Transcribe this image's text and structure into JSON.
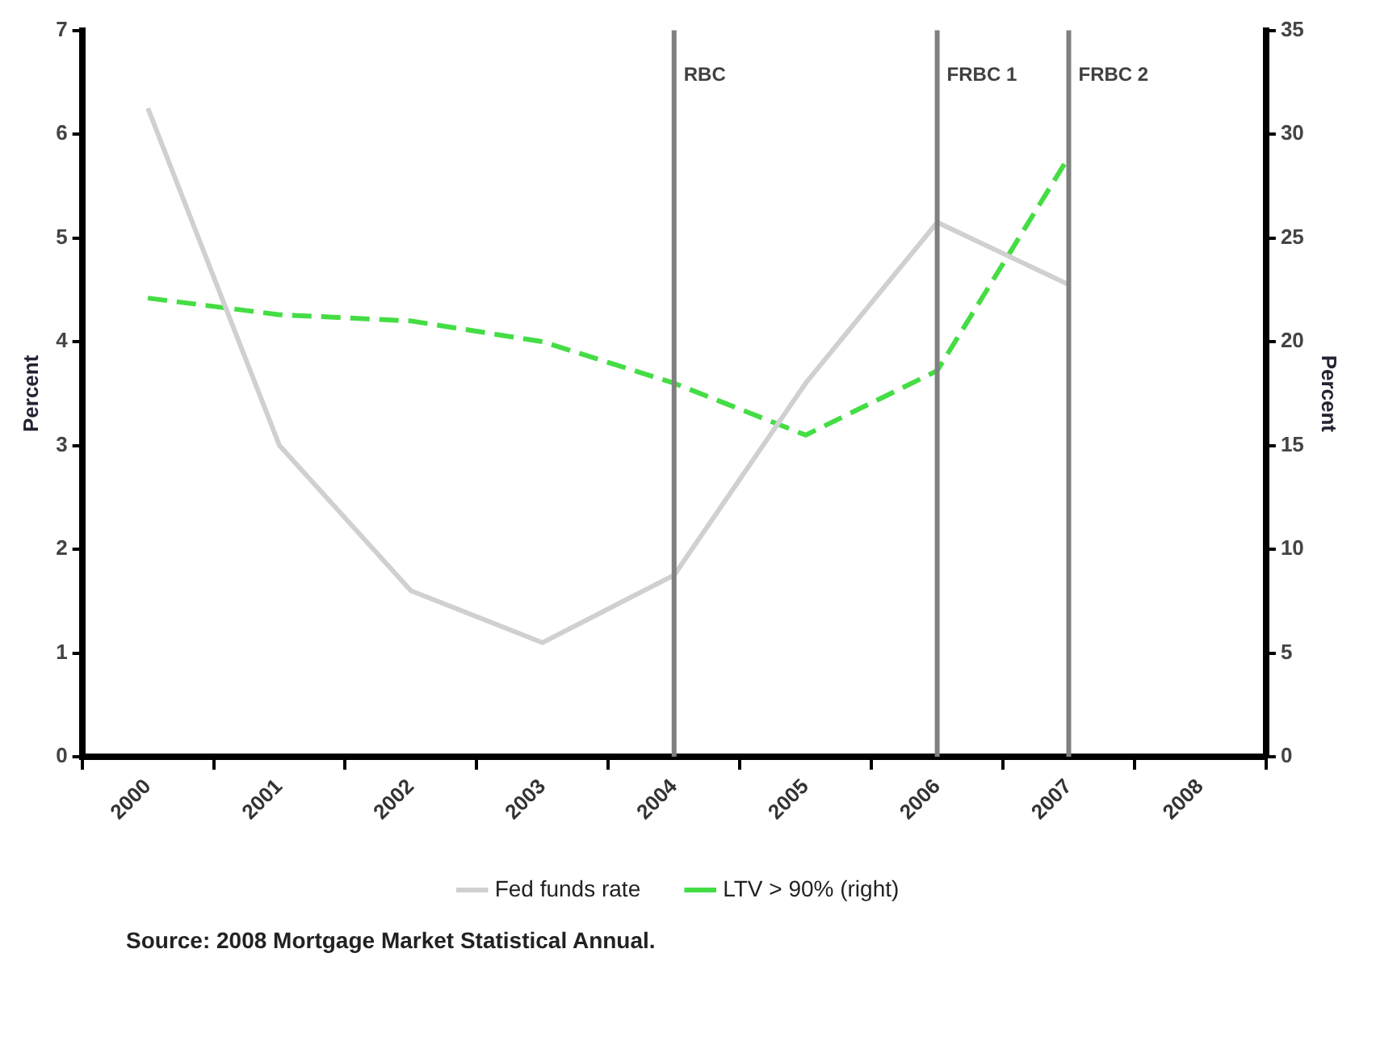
{
  "chart_data": {
    "type": "line",
    "ylabel": "Percent",
    "y2label": "Percent",
    "categories": [
      "2000",
      "2001",
      "2002",
      "2003",
      "2004",
      "2005",
      "2006",
      "2007",
      "2008"
    ],
    "series": [
      {
        "name": "Fed funds rate",
        "color": "#d0d0d0",
        "values": [
          6.25,
          3.0,
          1.6,
          1.1,
          1.75,
          3.6,
          5.15,
          4.55,
          null
        ],
        "line_style": "solid"
      },
      {
        "name": "LTV > 90% (right)",
        "color": "#44dd44",
        "axis": "y2",
        "values": [
          22.1,
          21.3,
          21,
          20,
          18,
          15.5,
          18.6,
          28.9,
          null
        ],
        "line_style": "dashed"
      }
    ],
    "ylim": [
      0,
      7
    ],
    "yticks": [
      0,
      1,
      2,
      3,
      4,
      5,
      6,
      7
    ],
    "y2lim": [
      0,
      35
    ],
    "y2ticks": [
      0,
      5,
      10,
      15,
      20,
      25,
      30,
      35
    ],
    "ref_lines": [
      {
        "axis": "x",
        "value": "2004",
        "label": "RBC",
        "color": "#808080"
      },
      {
        "axis": "x",
        "value": "2006",
        "label": "FRBC 1",
        "color": "#808080"
      },
      {
        "axis": "x",
        "value": "2007",
        "label": "FRBC 2",
        "color": "#808080"
      }
    ],
    "grid": false,
    "legend": "bottom",
    "marker": "none",
    "annotations": [
      "Source: 2008 Mortgage Market Statistical Annual."
    ]
  }
}
